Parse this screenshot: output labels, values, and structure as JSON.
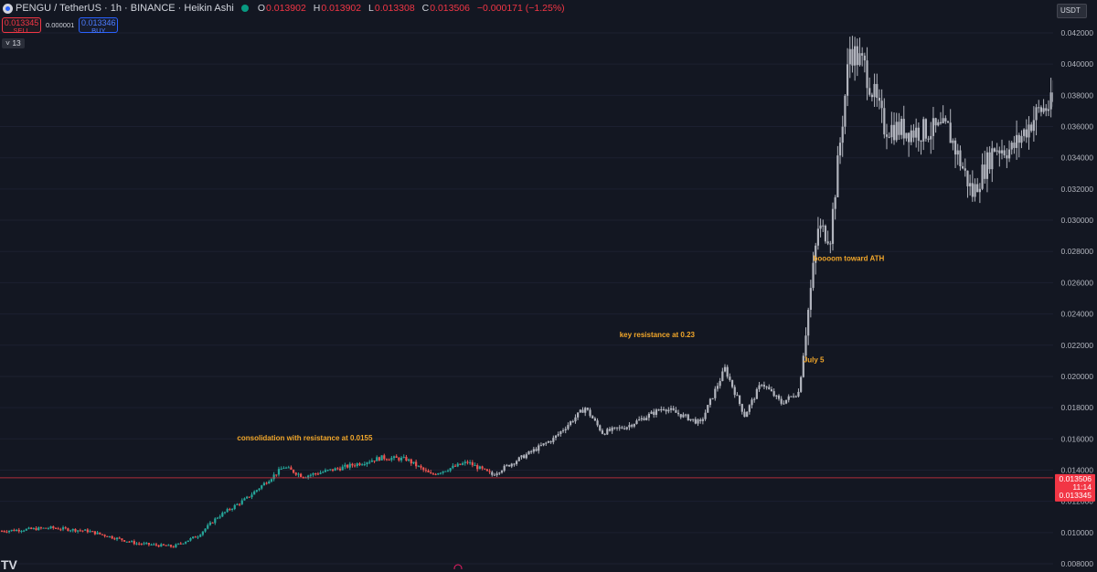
{
  "header": {
    "title": "PENGU / TetherUS · 1h · BINANCE · Heikin Ashi",
    "ohlc": [
      {
        "k": "O",
        "v": "0.013902"
      },
      {
        "k": "H",
        "v": "0.013902"
      },
      {
        "k": "L",
        "v": "0.013308"
      },
      {
        "k": "C",
        "v": "0.013506"
      },
      {
        "k": "",
        "v": "−0.000171 (−1.25%)"
      }
    ]
  },
  "trade": {
    "sell_price": "0.013345",
    "sell_label": "SELL",
    "spread": "0.000001",
    "buy_price": "0.013346",
    "buy_label": "BUY"
  },
  "indicator_toggle": "˅ 13",
  "currency": "USDT",
  "colors": {
    "background": "#131722",
    "up": "#26a69a",
    "down": "#ef5350",
    "neutral": "#b2b5be",
    "annotation": "#f2a72a",
    "price_line": "#f23645"
  },
  "chart_data": {
    "type": "candlestick",
    "symbol": "PENGU/USDT",
    "interval": "1h",
    "style": "Heikin Ashi",
    "yaxis": {
      "ticks": [
        "0.042000",
        "0.040000",
        "0.038000",
        "0.036000",
        "0.034000",
        "0.032000",
        "0.030000",
        "0.028000",
        "0.026000",
        "0.024000",
        "0.022000",
        "0.020000",
        "0.018000",
        "0.016000",
        "0.014000",
        "0.012000",
        "0.010000",
        "0.008000"
      ],
      "range": [
        0.0078,
        0.0433
      ]
    },
    "current_price": {
      "value": 0.013506,
      "label": "0.013506",
      "countdown": "11:14",
      "bid_label": "0.013345"
    },
    "annotations": [
      {
        "text": "consolidation with resistance at 0.0155",
        "near_price": 0.0159,
        "near_index": 96
      },
      {
        "text": "key resistance at 0.23",
        "near_price": 0.0225,
        "near_index": 252
      },
      {
        "text": "July 5",
        "near_price": 0.0209,
        "near_index": 327
      },
      {
        "text": "boooom toward ATH",
        "near_price": 0.0274,
        "near_index": 331
      }
    ],
    "keypoints": [
      [
        0,
        0.0101
      ],
      [
        20,
        0.0103
      ],
      [
        35,
        0.0101
      ],
      [
        55,
        0.0093
      ],
      [
        70,
        0.0091
      ],
      [
        80,
        0.0098
      ],
      [
        88,
        0.011
      ],
      [
        100,
        0.0122
      ],
      [
        115,
        0.0142
      ],
      [
        123,
        0.0136
      ],
      [
        140,
        0.0142
      ],
      [
        155,
        0.0148
      ],
      [
        165,
        0.0147
      ],
      [
        175,
        0.0137
      ],
      [
        190,
        0.0145
      ],
      [
        200,
        0.0137
      ],
      [
        225,
        0.016
      ],
      [
        238,
        0.018
      ],
      [
        245,
        0.0164
      ],
      [
        255,
        0.0168
      ],
      [
        270,
        0.018
      ],
      [
        285,
        0.017
      ],
      [
        295,
        0.0205
      ],
      [
        303,
        0.0175
      ],
      [
        310,
        0.0196
      ],
      [
        318,
        0.0183
      ],
      [
        325,
        0.019
      ],
      [
        333,
        0.0295
      ],
      [
        338,
        0.029
      ],
      [
        346,
        0.041
      ],
      [
        352,
        0.0398
      ],
      [
        360,
        0.036
      ],
      [
        372,
        0.0357
      ],
      [
        386,
        0.0358
      ],
      [
        396,
        0.0317
      ],
      [
        405,
        0.0347
      ],
      [
        412,
        0.0345
      ],
      [
        423,
        0.037
      ],
      [
        430,
        0.0375
      ]
    ],
    "colored_segments": [
      {
        "range": [
          0,
          200
        ],
        "color": "mixed_up_down"
      },
      {
        "range": [
          200,
          430
        ],
        "color": "neutral_gray"
      }
    ]
  }
}
